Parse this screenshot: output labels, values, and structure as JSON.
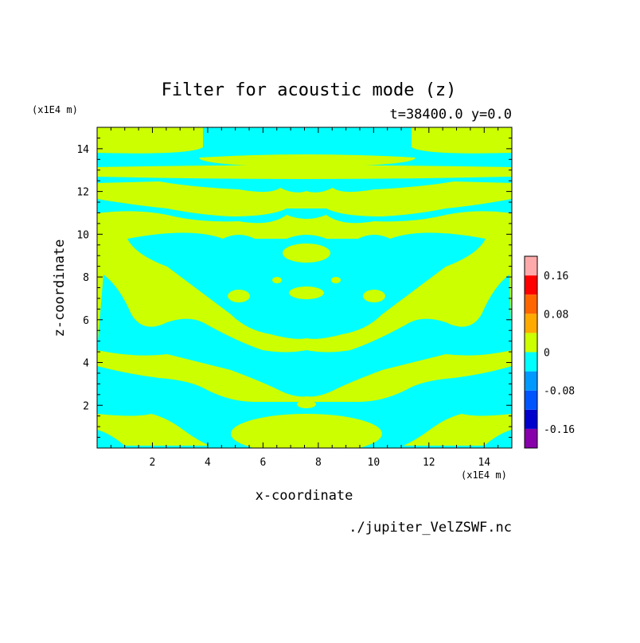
{
  "chart_data": {
    "type": "heatmap",
    "title": "Filter for acoustic mode (z)",
    "subtitle": "t=38400.0 y=0.0",
    "xlabel": "x-coordinate",
    "ylabel": "z-coordinate",
    "x_unit": "(x1E4 m)",
    "y_unit": "(x1E4 m)",
    "source": "./jupiter_VelZSWF.nc",
    "xlim": [
      0,
      15
    ],
    "ylim": [
      0,
      15
    ],
    "x_ticks": [
      2,
      4,
      6,
      8,
      10,
      12,
      14
    ],
    "y_ticks": [
      2,
      4,
      6,
      8,
      10,
      12,
      14
    ],
    "x_tick_labels": [
      "2",
      "4",
      "6",
      "8",
      "10",
      "12",
      "14"
    ],
    "y_tick_labels": [
      "2",
      "4",
      "6",
      "8",
      "10",
      "12",
      "14"
    ],
    "colorbar": {
      "levels": [
        -0.2,
        -0.16,
        -0.12,
        -0.08,
        -0.04,
        0,
        0.04,
        0.08,
        0.12,
        0.16,
        0.2
      ],
      "colors": [
        "#8800aa",
        "#0000cc",
        "#0055ff",
        "#0099ff",
        "#00ffff",
        "#ccff00",
        "#ffaa00",
        "#ff6600",
        "#ff0000",
        "#ffaaaa"
      ],
      "tick_values": [
        0.16,
        0.08,
        0,
        -0.08,
        -0.16
      ],
      "tick_labels": [
        "0.16",
        "0.08",
        "0",
        "-0.08",
        "-0.16"
      ]
    },
    "field_colors": {
      "negative": "#00ffff",
      "positive": "#ccff00"
    },
    "field_note": "Field values mostly in range -0.04 to 0.04 (two shades: cyan negative, yellow-green positive). Pattern is mirror-symmetric about x=7.5."
  }
}
